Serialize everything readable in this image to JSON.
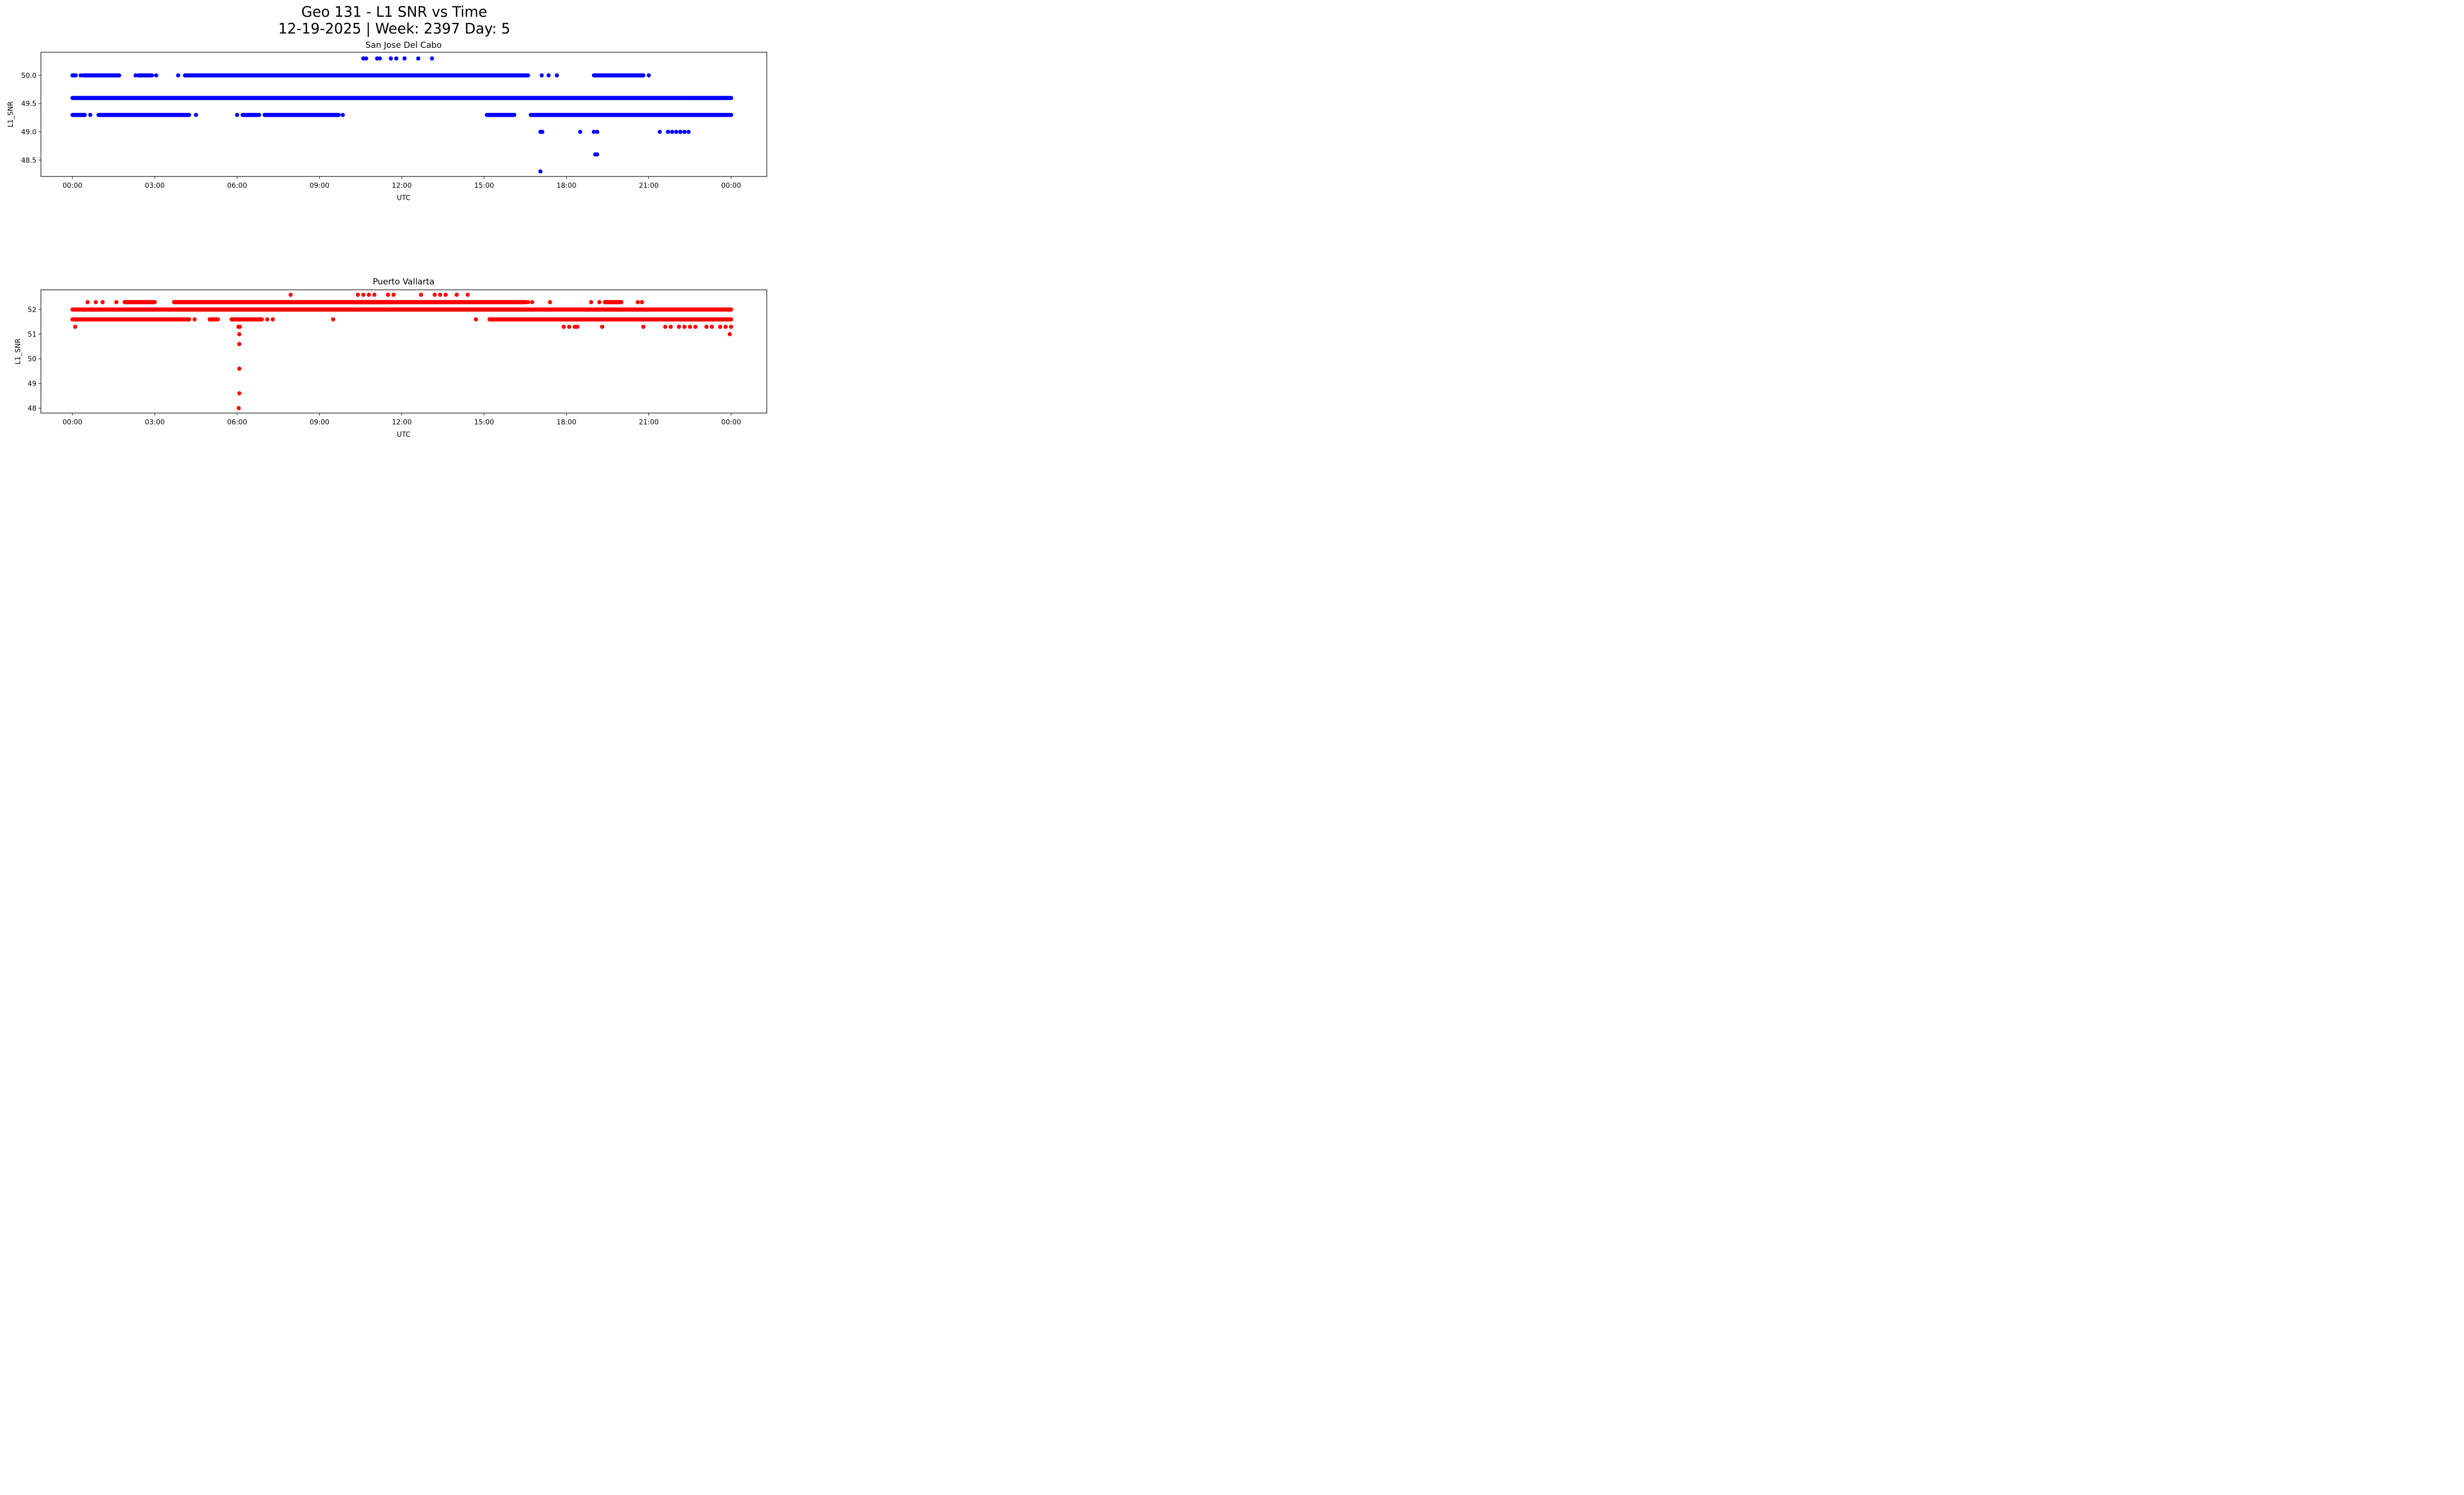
{
  "figure": {
    "title_line1": "Geo 131 - L1 SNR vs Time",
    "title_line2": "12-19-2025 | Week: 2397 Day: 5"
  },
  "chart_data": [
    {
      "type": "scatter",
      "title": "San Jose Del Cabo",
      "xlabel": "UTC",
      "ylabel": "L1_SNR",
      "color": "#0000ff",
      "x_unit": "hours UTC",
      "xlim": [
        -1.15,
        25.3
      ],
      "ylim": [
        48.21,
        50.41
      ],
      "xticks": [
        0,
        3,
        6,
        9,
        12,
        15,
        18,
        21,
        24
      ],
      "xtick_labels": [
        "00:00",
        "03:00",
        "06:00",
        "09:00",
        "12:00",
        "15:00",
        "18:00",
        "21:00",
        "00:00"
      ],
      "yticks": [
        48.5,
        49.0,
        49.5,
        50.0
      ],
      "ytick_labels": [
        "48.5",
        "49.0",
        "49.5",
        "50.0"
      ],
      "grid": false,
      "series": [
        {
          "name": "L1_SNR",
          "segments": [
            {
              "y": 49.6,
              "x_start": 0.0,
              "x_end": 24.0
            },
            {
              "y": 50.0,
              "x_start": 0.0,
              "x_end": 0.12
            },
            {
              "y": 50.0,
              "x_start": 0.4,
              "x_end": 1.7
            },
            {
              "y": 50.0,
              "x_start": 2.4,
              "x_end": 2.9
            },
            {
              "y": 50.0,
              "x_start": 4.1,
              "x_end": 16.6
            },
            {
              "y": 50.0,
              "x_start": 19.0,
              "x_end": 20.8
            },
            {
              "y": 49.3,
              "x_start": 0.0,
              "x_end": 0.45
            },
            {
              "y": 49.3,
              "x_start": 0.95,
              "x_end": 4.25
            },
            {
              "y": 49.3,
              "x_start": 6.2,
              "x_end": 6.8
            },
            {
              "y": 49.3,
              "x_start": 7.0,
              "x_end": 9.7
            },
            {
              "y": 49.3,
              "x_start": 15.1,
              "x_end": 16.1
            },
            {
              "y": 49.3,
              "x_start": 16.7,
              "x_end": 24.0
            }
          ],
          "points": [
            {
              "x": 0.3,
              "y": 50.0
            },
            {
              "x": 2.3,
              "y": 50.0
            },
            {
              "x": 3.05,
              "y": 50.0
            },
            {
              "x": 3.85,
              "y": 50.0
            },
            {
              "x": 17.1,
              "y": 50.0
            },
            {
              "x": 17.35,
              "y": 50.0
            },
            {
              "x": 17.65,
              "y": 50.0
            },
            {
              "x": 21.0,
              "y": 50.0
            },
            {
              "x": 0.65,
              "y": 49.3
            },
            {
              "x": 4.5,
              "y": 49.3
            },
            {
              "x": 6.0,
              "y": 49.3
            },
            {
              "x": 9.85,
              "y": 49.3
            },
            {
              "x": 10.6,
              "y": 50.3
            },
            {
              "x": 10.7,
              "y": 50.3
            },
            {
              "x": 11.1,
              "y": 50.3
            },
            {
              "x": 11.2,
              "y": 50.3
            },
            {
              "x": 11.6,
              "y": 50.3
            },
            {
              "x": 11.8,
              "y": 50.3
            },
            {
              "x": 12.1,
              "y": 50.3
            },
            {
              "x": 12.6,
              "y": 50.3
            },
            {
              "x": 13.1,
              "y": 50.3
            },
            {
              "x": 17.05,
              "y": 49.0
            },
            {
              "x": 17.12,
              "y": 49.0
            },
            {
              "x": 18.5,
              "y": 49.0
            },
            {
              "x": 19.0,
              "y": 49.0
            },
            {
              "x": 19.12,
              "y": 49.0
            },
            {
              "x": 21.4,
              "y": 49.0
            },
            {
              "x": 21.7,
              "y": 49.0
            },
            {
              "x": 21.85,
              "y": 49.0
            },
            {
              "x": 22.0,
              "y": 49.0
            },
            {
              "x": 22.15,
              "y": 49.0
            },
            {
              "x": 22.3,
              "y": 49.0
            },
            {
              "x": 22.45,
              "y": 49.0
            },
            {
              "x": 19.05,
              "y": 48.6
            },
            {
              "x": 19.12,
              "y": 48.6
            },
            {
              "x": 17.05,
              "y": 48.3
            }
          ]
        }
      ]
    },
    {
      "type": "scatter",
      "title": "Puerto Vallarta",
      "xlabel": "UTC",
      "ylabel": "L1_SNR",
      "color": "#ff0000",
      "x_unit": "hours UTC",
      "xlim": [
        -1.15,
        25.3
      ],
      "ylim": [
        47.8,
        52.8
      ],
      "xticks": [
        0,
        3,
        6,
        9,
        12,
        15,
        18,
        21,
        24
      ],
      "xtick_labels": [
        "00:00",
        "03:00",
        "06:00",
        "09:00",
        "12:00",
        "15:00",
        "18:00",
        "21:00",
        "00:00"
      ],
      "yticks": [
        48,
        49,
        50,
        51,
        52
      ],
      "ytick_labels": [
        "48",
        "49",
        "50",
        "51",
        "52"
      ],
      "grid": false,
      "series": [
        {
          "name": "L1_SNR",
          "segments": [
            {
              "y": 52.0,
              "x_start": 0.0,
              "x_end": 24.0
            },
            {
              "y": 51.6,
              "x_start": 0.0,
              "x_end": 4.25
            },
            {
              "y": 51.6,
              "x_start": 5.0,
              "x_end": 5.3
            },
            {
              "y": 51.6,
              "x_start": 5.8,
              "x_end": 6.9
            },
            {
              "y": 51.6,
              "x_start": 15.2,
              "x_end": 24.0
            },
            {
              "y": 52.3,
              "x_start": 1.9,
              "x_end": 3.0
            },
            {
              "y": 52.3,
              "x_start": 3.75,
              "x_end": 16.5
            },
            {
              "y": 52.3,
              "x_start": 19.4,
              "x_end": 20.0
            },
            {
              "y": 52.3,
              "x_start": 10.4,
              "x_end": 11.6
            }
          ],
          "points": [
            {
              "x": 0.55,
              "y": 52.3
            },
            {
              "x": 0.85,
              "y": 52.3
            },
            {
              "x": 1.1,
              "y": 52.3
            },
            {
              "x": 1.6,
              "y": 52.3
            },
            {
              "x": 3.7,
              "y": 52.3
            },
            {
              "x": 16.6,
              "y": 52.3
            },
            {
              "x": 16.75,
              "y": 52.3
            },
            {
              "x": 17.4,
              "y": 52.3
            },
            {
              "x": 18.9,
              "y": 52.3
            },
            {
              "x": 19.2,
              "y": 52.3
            },
            {
              "x": 20.6,
              "y": 52.3
            },
            {
              "x": 20.75,
              "y": 52.3
            },
            {
              "x": 7.95,
              "y": 52.6
            },
            {
              "x": 10.4,
              "y": 52.6
            },
            {
              "x": 10.6,
              "y": 52.6
            },
            {
              "x": 10.8,
              "y": 52.6
            },
            {
              "x": 11.0,
              "y": 52.6
            },
            {
              "x": 11.5,
              "y": 52.6
            },
            {
              "x": 11.7,
              "y": 52.6
            },
            {
              "x": 12.7,
              "y": 52.6
            },
            {
              "x": 13.2,
              "y": 52.6
            },
            {
              "x": 13.4,
              "y": 52.6
            },
            {
              "x": 13.6,
              "y": 52.6
            },
            {
              "x": 14.0,
              "y": 52.6
            },
            {
              "x": 14.4,
              "y": 52.6
            },
            {
              "x": 4.45,
              "y": 51.6
            },
            {
              "x": 7.1,
              "y": 51.6
            },
            {
              "x": 7.3,
              "y": 51.6
            },
            {
              "x": 9.5,
              "y": 51.6
            },
            {
              "x": 14.7,
              "y": 51.6
            },
            {
              "x": 0.1,
              "y": 51.3
            },
            {
              "x": 6.05,
              "y": 51.3
            },
            {
              "x": 6.1,
              "y": 51.3
            },
            {
              "x": 17.9,
              "y": 51.3
            },
            {
              "x": 18.1,
              "y": 51.3
            },
            {
              "x": 18.3,
              "y": 51.3
            },
            {
              "x": 18.4,
              "y": 51.3
            },
            {
              "x": 19.3,
              "y": 51.3
            },
            {
              "x": 20.8,
              "y": 51.3
            },
            {
              "x": 21.6,
              "y": 51.3
            },
            {
              "x": 21.8,
              "y": 51.3
            },
            {
              "x": 22.1,
              "y": 51.3
            },
            {
              "x": 22.3,
              "y": 51.3
            },
            {
              "x": 22.5,
              "y": 51.3
            },
            {
              "x": 22.7,
              "y": 51.3
            },
            {
              "x": 23.1,
              "y": 51.3
            },
            {
              "x": 23.3,
              "y": 51.3
            },
            {
              "x": 23.6,
              "y": 51.3
            },
            {
              "x": 23.8,
              "y": 51.3
            },
            {
              "x": 24.0,
              "y": 51.3
            },
            {
              "x": 6.08,
              "y": 51.0
            },
            {
              "x": 23.95,
              "y": 51.0
            },
            {
              "x": 6.08,
              "y": 50.6
            },
            {
              "x": 6.08,
              "y": 49.6
            },
            {
              "x": 6.08,
              "y": 48.6
            },
            {
              "x": 6.06,
              "y": 48.0
            }
          ]
        }
      ]
    }
  ]
}
